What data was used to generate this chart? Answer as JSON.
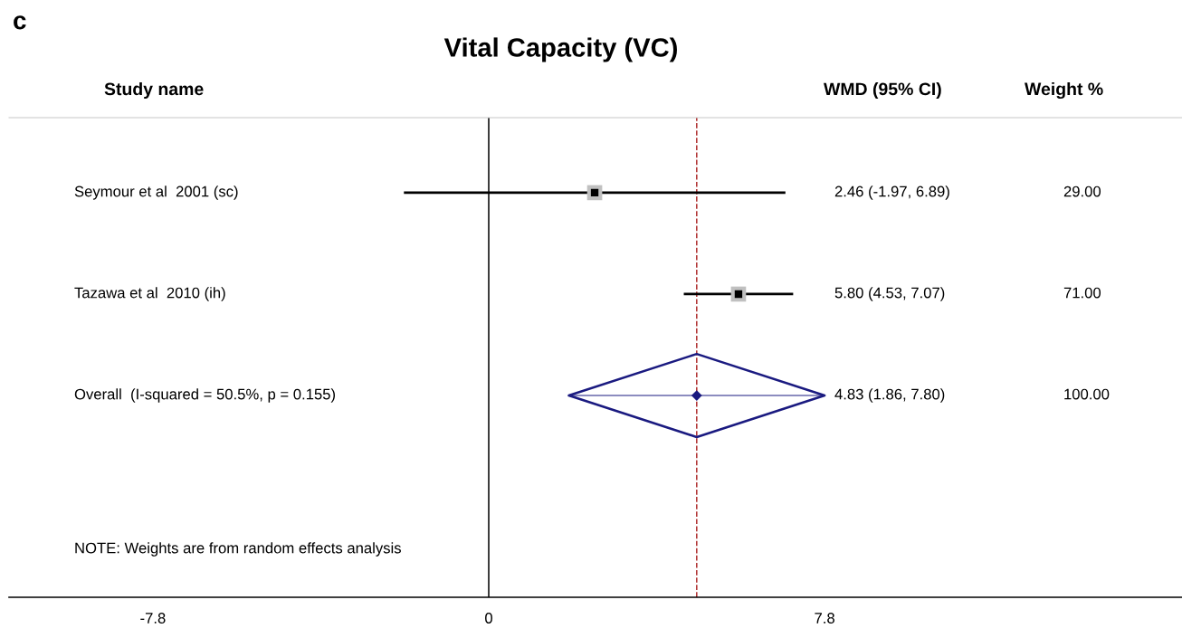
{
  "chart_data": {
    "type": "scatter",
    "orientation": "horizontal",
    "title": "Vital Capacity (VC)",
    "categories": [
      "Seymour et al  2001 (sc)",
      "Tazawa et al  2010 (ih)",
      "Overall  (I-squared = 50.5%, p = 0.155)"
    ],
    "series": [
      {
        "type": "scatter",
        "marker": "square",
        "color": "#000000",
        "values": [
          2.46,
          5.8,
          null
        ],
        "errors": [
          [
            -1.97,
            6.89
          ],
          [
            4.53,
            7.07
          ],
          null
        ]
      },
      {
        "type": "scatter",
        "marker": "diamond",
        "color": "#1a1a80",
        "values": [
          null,
          null,
          4.83
        ],
        "errors": [
          null,
          null,
          [
            1.86,
            7.8
          ]
        ]
      }
    ],
    "value_labels": [
      "2.46 (-1.97, 6.89)",
      "5.80 (4.53, 7.07)",
      "4.83 (1.86, 7.80)"
    ],
    "xlim": [
      -11.14,
      16.1
    ],
    "xticks": [
      -7.8,
      0,
      7.8
    ],
    "grid": false,
    "ref_lines": [
      {
        "axis": "x",
        "value": 0,
        "color": "#000000",
        "line_style": "solid"
      },
      {
        "axis": "x",
        "value": 4.83,
        "color": "#b03030",
        "line_style": "dashed"
      }
    ],
    "annotations": [
      "c",
      "Study name",
      "WMD (95% CI)",
      "Weight %",
      "29.00",
      "71.00",
      "100.00",
      "NOTE: Weights are from random effects analysis"
    ]
  }
}
